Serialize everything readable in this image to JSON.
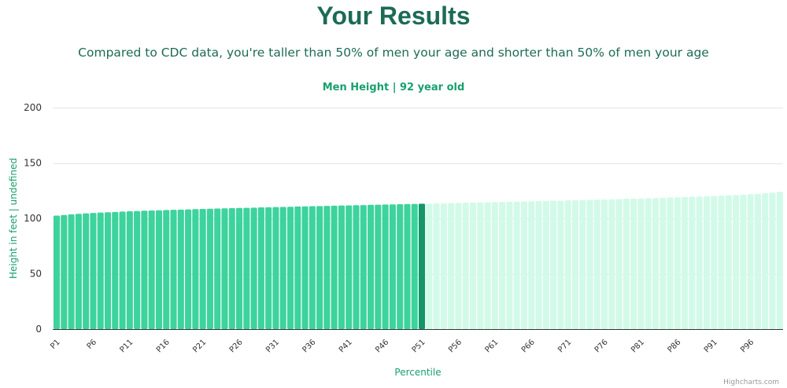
{
  "header": {
    "title": "Your Results",
    "subtitle": "Compared to CDC data, you're taller than 50% of men your age and shorter than 50% of men your age"
  },
  "credits": "Highcharts.com",
  "colors": {
    "below": "#3dd39c",
    "user": "#12966a",
    "above": "#d2fae8",
    "title": "#1c6b55",
    "accent": "#18a06e"
  },
  "chart_data": {
    "type": "bar",
    "title": "Men Height | 92 year old",
    "xlabel": "Percentile",
    "ylabel": "Height in feet | undefined",
    "ylim": [
      0,
      200
    ],
    "yticks": [
      0,
      50,
      100,
      150,
      200
    ],
    "grid": true,
    "highlight_index": 50,
    "x_tick_labels": [
      "P1",
      "P6",
      "P11",
      "P16",
      "P21",
      "P26",
      "P31",
      "P36",
      "P41",
      "P46",
      "P51",
      "P56",
      "P61",
      "P66",
      "P71",
      "P76",
      "P81",
      "P86",
      "P91",
      "P96"
    ],
    "categories": [
      "P1",
      "P2",
      "P3",
      "P4",
      "P5",
      "P6",
      "P7",
      "P8",
      "P9",
      "P10",
      "P11",
      "P12",
      "P13",
      "P14",
      "P15",
      "P16",
      "P17",
      "P18",
      "P19",
      "P20",
      "P21",
      "P22",
      "P23",
      "P24",
      "P25",
      "P26",
      "P27",
      "P28",
      "P29",
      "P30",
      "P31",
      "P32",
      "P33",
      "P34",
      "P35",
      "P36",
      "P37",
      "P38",
      "P39",
      "P40",
      "P41",
      "P42",
      "P43",
      "P44",
      "P45",
      "P46",
      "P47",
      "P48",
      "P49",
      "P50",
      "P51",
      "P52",
      "P53",
      "P54",
      "P55",
      "P56",
      "P57",
      "P58",
      "P59",
      "P60",
      "P61",
      "P62",
      "P63",
      "P64",
      "P65",
      "P66",
      "P67",
      "P68",
      "P69",
      "P70",
      "P71",
      "P72",
      "P73",
      "P74",
      "P75",
      "P76",
      "P77",
      "P78",
      "P79",
      "P80",
      "P81",
      "P82",
      "P83",
      "P84",
      "P85",
      "P86",
      "P87",
      "P88",
      "P89",
      "P90",
      "P91",
      "P92",
      "P93",
      "P94",
      "P95",
      "P96",
      "P97",
      "P98",
      "P99",
      "P100"
    ],
    "values": [
      102.5,
      103.0,
      103.6,
      104.1,
      104.5,
      104.9,
      105.2,
      105.5,
      105.8,
      106.1,
      106.4,
      106.6,
      106.9,
      107.1,
      107.3,
      107.5,
      107.7,
      107.9,
      108.1,
      108.3,
      108.5,
      108.7,
      108.9,
      109.0,
      109.2,
      109.4,
      109.5,
      109.7,
      109.9,
      110.0,
      110.2,
      110.3,
      110.5,
      110.7,
      110.8,
      111.0,
      111.1,
      111.3,
      111.4,
      111.6,
      111.7,
      111.9,
      112.0,
      112.2,
      112.3,
      112.5,
      112.6,
      112.8,
      112.9,
      113.0,
      113.2,
      113.3,
      113.5,
      113.6,
      113.8,
      113.9,
      114.1,
      114.2,
      114.4,
      114.5,
      114.7,
      114.8,
      115.0,
      115.1,
      115.3,
      115.4,
      115.6,
      115.7,
      115.9,
      116.0,
      116.2,
      116.4,
      116.5,
      116.7,
      116.9,
      117.0,
      117.2,
      117.4,
      117.6,
      117.8,
      117.9,
      118.1,
      118.3,
      118.5,
      118.8,
      119.0,
      119.2,
      119.4,
      119.7,
      119.9,
      120.2,
      120.5,
      120.8,
      121.1,
      121.4,
      121.8,
      122.2,
      122.7,
      123.2,
      123.9
    ]
  }
}
